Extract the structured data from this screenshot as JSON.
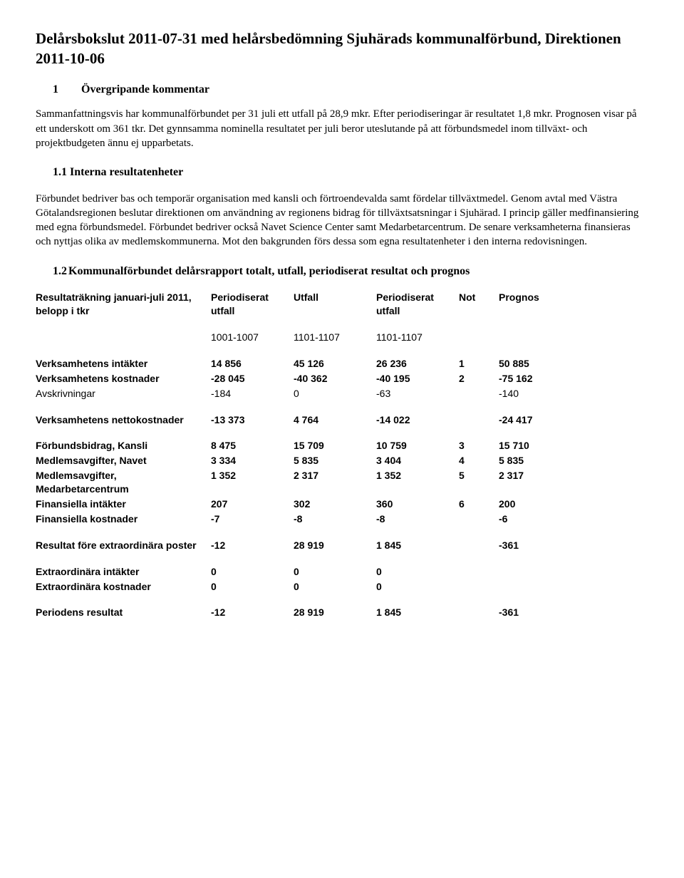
{
  "title": "Delårsbokslut 2011-07-31 med helårsbedömning Sjuhärads kommunalförbund, Direktionen 2011-10-06",
  "section1": {
    "num": "1",
    "heading": "Övergripande kommentar"
  },
  "intro": "Sammanfattningsvis har kommunalförbundet per 31 juli ett utfall på 28,9 mkr. Efter periodiseringar är resultatet 1,8 mkr. Prognosen visar på ett underskott om 361 tkr. Det gynnsamma nominella resultatet per juli beror uteslutande på att förbundsmedel inom tillväxt- och projektbudgeten ännu ej upparbetats.",
  "sub11": {
    "num": "1.1 ",
    "heading": "Interna resultatenheter"
  },
  "body11": "Förbundet bedriver bas och temporär organisation med kansli och förtroendevalda samt fördelar tillväxtmedel. Genom avtal med Västra Götalandsregionen beslutar direktionen om användning av regionens bidrag för tillväxtsatsningar i Sjuhärad. I princip gäller medfinansiering med egna förbundsmedel. Förbundet bedriver också Navet Science Center samt Medarbetarcentrum. De senare verksamheterna finansieras och nyttjas olika av medlemskommunerna. Mot den bakgrunden förs dessa som egna resultatenheter i den interna redovisningen.",
  "sub12": {
    "num": "1.2 ",
    "heading": "Kommunalförbundet delårsrapport totalt, utfall, periodiserat resultat och prognos"
  },
  "table": {
    "header": {
      "c0a": "Resultaträkning januari-juli 2011,",
      "c0b": "belopp i tkr",
      "c1a": "Periodiserat",
      "c1b": "utfall",
      "c2": "Utfall",
      "c3a": "Periodiserat",
      "c3b": "utfall",
      "c4": "Not",
      "c5": "Prognos"
    },
    "periods": {
      "c1": "1001-1007",
      "c2": "1101-1107",
      "c3": "1101-1107"
    },
    "rows": [
      {
        "label": "Verksamhetens intäkter",
        "c1": "14 856",
        "c2": "45 126",
        "c3": "26 236",
        "not": "1",
        "c5": "50 885",
        "bold": true
      },
      {
        "label": "Verksamhetens kostnader",
        "c1": "-28 045",
        "c2": "-40 362",
        "c3": "-40 195",
        "not": "2",
        "c5": "-75 162",
        "bold": true
      },
      {
        "label": "Avskrivningar",
        "c1": "-184",
        "c2": "0",
        "c3": "-63",
        "not": "",
        "c5": "-140",
        "bold": false
      }
    ],
    "netto": {
      "label": "Verksamhetens nettokostnader",
      "c1": "-13 373",
      "c2": "4 764",
      "c3": "-14 022",
      "not": "",
      "c5": "-24 417"
    },
    "mid": [
      {
        "label": "Förbundsbidrag, Kansli",
        "c1": "8 475",
        "c2": "15 709",
        "c3": "10 759",
        "not": "3",
        "c5": "15 710",
        "bold": true
      },
      {
        "label": "Medlemsavgifter, Navet",
        "c1": "3 334",
        "c2": "5 835",
        "c3": "3 404",
        "not": "4",
        "c5": "5 835",
        "bold": true
      },
      {
        "label": "Medlemsavgifter, Medarbetarcentrum",
        "c1": "1 352",
        "c2": "2 317",
        "c3": "1 352",
        "not": "5",
        "c5": "2 317",
        "bold": true,
        "wrap": true
      },
      {
        "label": "Finansiella intäkter",
        "c1": "207",
        "c2": "302",
        "c3": "360",
        "not": "6",
        "c5": "200",
        "bold": true
      },
      {
        "label": "Finansiella kostnader",
        "c1": "-7",
        "c2": "-8",
        "c3": "-8",
        "not": "",
        "c5": "-6",
        "bold": true
      }
    ],
    "res_fore": {
      "label": "Resultat före extraordinära poster",
      "c1": "-12",
      "c2": "28 919",
      "c3": "1 845",
      "not": "",
      "c5": "-361"
    },
    "extra": [
      {
        "label": "Extraordinära intäkter",
        "c1": "0",
        "c2": "0",
        "c3": "0",
        "not": "",
        "c5": ""
      },
      {
        "label": "Extraordinära kostnader",
        "c1": "0",
        "c2": "0",
        "c3": "0",
        "not": "",
        "c5": ""
      }
    ],
    "periodres": {
      "label": "Periodens resultat",
      "c1": "-12",
      "c2": "28 919",
      "c3": "1 845",
      "not": "",
      "c5": "-361"
    }
  },
  "labels": {
    "medlem_a": "Medlemsavgifter,",
    "medlem_b": "Medarbetarcentrum"
  }
}
